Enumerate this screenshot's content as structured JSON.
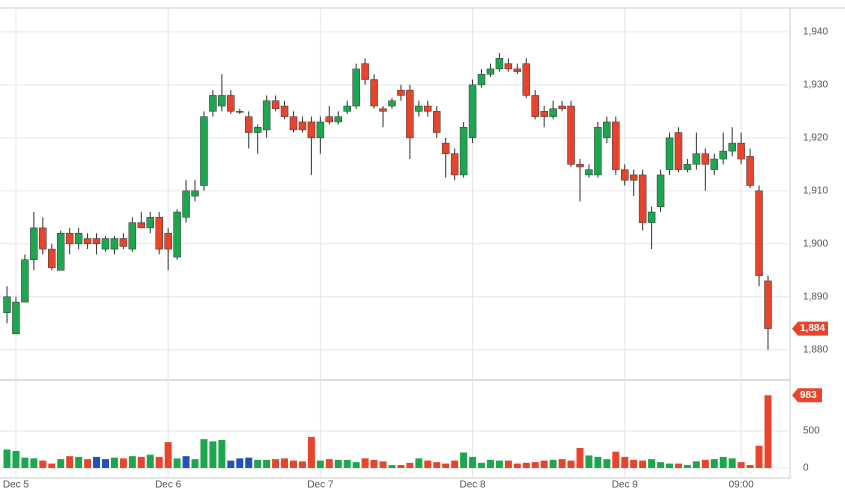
{
  "chart_data": {
    "type": "candlestick",
    "categories": [
      null,
      "Dec 5",
      null,
      null,
      null,
      null,
      null,
      null,
      null,
      null,
      null,
      null,
      null,
      null,
      null,
      null,
      null,
      null,
      "Dec 6",
      null,
      null,
      null,
      null,
      null,
      null,
      null,
      null,
      null,
      null,
      null,
      null,
      null,
      null,
      null,
      null,
      "Dec 7",
      null,
      null,
      null,
      null,
      null,
      null,
      null,
      null,
      null,
      null,
      null,
      null,
      null,
      null,
      null,
      null,
      "Dec 8",
      null,
      null,
      null,
      null,
      null,
      null,
      null,
      null,
      null,
      null,
      null,
      null,
      null,
      null,
      null,
      null,
      "Dec 9",
      null,
      null,
      null,
      null,
      null,
      null,
      null,
      null,
      null,
      null,
      null,
      null,
      "09:00",
      null,
      null,
      null
    ],
    "open": [
      1887,
      1883,
      1889,
      1897,
      1903,
      1899,
      1895,
      1902,
      1900,
      1901,
      1901,
      1899,
      1899,
      1901,
      1899,
      1904,
      1903,
      1905,
      1902,
      1897.5,
      1905,
      1909,
      1911,
      1925,
      1926,
      1928,
      1925,
      1924,
      1921,
      1921.5,
      1927,
      1926,
      1924,
      1923,
      1923,
      1920,
      1924,
      1923,
      1925,
      1926,
      1934,
      1931,
      1925.5,
      1926,
      1929,
      1929,
      1925,
      1926,
      1925,
      1919,
      1917,
      1913,
      1920,
      1930,
      1932,
      1933,
      1934,
      1933,
      1934,
      1928,
      1925,
      1924,
      1926,
      1926,
      1915,
      1913,
      1913,
      1920,
      1923,
      1914,
      1913,
      1913,
      1904,
      1907,
      1914,
      1921,
      1914,
      1915,
      1917,
      1914,
      1916,
      1917.5,
      1919,
      1916.5,
      1910,
      1893
    ],
    "high": [
      1892,
      1890,
      1898,
      1906,
      1905,
      1900,
      1902.5,
      1903,
      1903,
      1902,
      1902,
      1901.5,
      1901.5,
      1902,
      1905,
      1906,
      1906,
      1906,
      1903,
      1906.5,
      1912,
      1912,
      1925,
      1929,
      1932,
      1929,
      1925.5,
      1925,
      1922.5,
      1928,
      1928,
      1927,
      1925,
      1924,
      1924,
      1924,
      1926,
      1925,
      1927,
      1934,
      1935,
      1932,
      1926,
      1927.5,
      1930,
      1930,
      1927,
      1927,
      1926,
      1920,
      1918,
      1923,
      1931,
      1933,
      1934,
      1936,
      1935,
      1934,
      1935,
      1929,
      1926,
      1927,
      1927,
      1927,
      1916,
      1915,
      1923,
      1924,
      1924,
      1915,
      1914,
      1914,
      1907,
      1914,
      1921,
      1922,
      1916,
      1921,
      1918,
      1917,
      1921,
      1922,
      1921,
      1918,
      1911,
      1894
    ],
    "low": [
      1885,
      1883,
      1889,
      1895,
      1898,
      1895,
      1895,
      1898,
      1899,
      1899,
      1898,
      1898.5,
      1898,
      1899,
      1898.5,
      1903,
      1902,
      1898,
      1895,
      1897,
      1904,
      1908,
      1910,
      1924,
      1925,
      1924.5,
      1924.5,
      1918,
      1917,
      1920,
      1925,
      1923.5,
      1921,
      1921,
      1913,
      1917,
      1922.5,
      1922.5,
      1924.5,
      1925.5,
      1930,
      1925.5,
      1922,
      1925.5,
      1927,
      1916,
      1924,
      1924,
      1920,
      1912.5,
      1912,
      1912.5,
      1919,
      1929.5,
      1931.5,
      1932.5,
      1932.5,
      1932,
      1927.5,
      1923.5,
      1922,
      1923.5,
      1925,
      1914.5,
      1908,
      1912.5,
      1912.5,
      1919,
      1913,
      1911,
      1909,
      1902.5,
      1899,
      1906,
      1913,
      1913.5,
      1913.5,
      1914,
      1910,
      1913,
      1915,
      1916.5,
      1915,
      1910.5,
      1892,
      1880
    ],
    "close": [
      1890,
      1889,
      1897,
      1903,
      1899,
      1895.5,
      1902,
      1900,
      1902,
      1900,
      1900,
      1901,
      1901,
      1899.5,
      1904,
      1903,
      1905,
      1899,
      1899,
      1906,
      1910,
      1910,
      1924,
      1928,
      1928,
      1925,
      1925,
      1921,
      1922,
      1927,
      1925.5,
      1924,
      1921.5,
      1921.5,
      1920,
      1923,
      1923,
      1924,
      1926,
      1933,
      1931,
      1926,
      1925,
      1927,
      1928,
      1920,
      1926,
      1925,
      1921,
      1917,
      1913,
      1922,
      1930,
      1932,
      1933,
      1935,
      1933,
      1932.5,
      1928,
      1924,
      1924,
      1925.5,
      1925.5,
      1915,
      1914.5,
      1914,
      1922,
      1923,
      1914,
      1912,
      1912,
      1904,
      1906,
      1913,
      1920,
      1914,
      1915,
      1917,
      1915,
      1916,
      1917.5,
      1919,
      1916,
      1911,
      1894,
      1884
    ],
    "ylim": [
      1874.3,
      1944.5
    ],
    "yticks": [
      {
        "value": 1880,
        "label": "1,880"
      },
      {
        "value": 1890,
        "label": "1,890"
      },
      {
        "value": 1900,
        "label": "1,900"
      },
      {
        "value": 1910,
        "label": "1,910"
      },
      {
        "value": 1920,
        "label": "1,920"
      },
      {
        "value": 1930,
        "label": "1,930"
      },
      {
        "value": 1940,
        "label": "1,940"
      }
    ],
    "up_color": "#1ea64f",
    "down_color": "#e8442c",
    "last_price": 1884,
    "last_price_label": "1,884",
    "volume": {
      "values": [
        250,
        230,
        140,
        130,
        100,
        60,
        120,
        160,
        150,
        120,
        150,
        120,
        140,
        130,
        160,
        150,
        180,
        150,
        350,
        130,
        160,
        120,
        390,
        360,
        380,
        100,
        130,
        140,
        110,
        110,
        120,
        130,
        100,
        90,
        420,
        100,
        120,
        110,
        110,
        80,
        130,
        110,
        90,
        40,
        40,
        70,
        130,
        100,
        80,
        60,
        100,
        210,
        150,
        70,
        110,
        100,
        100,
        60,
        70,
        80,
        100,
        110,
        120,
        100,
        270,
        170,
        150,
        120,
        220,
        150,
        110,
        100,
        120,
        80,
        60,
        60,
        40,
        90,
        110,
        120,
        150,
        130,
        80,
        40,
        300,
        983
      ],
      "colors": [
        "#1ea64f",
        "#1ea64f",
        "#1ea64f",
        "#1ea64f",
        "#e8442c",
        "#e8442c",
        "#1ea64f",
        "#e8442c",
        "#1ea64f",
        "#e8442c",
        "#2451b7",
        "#2451b7",
        "#1ea64f",
        "#e8442c",
        "#1ea64f",
        "#e8442c",
        "#1ea64f",
        "#e8442c",
        "#e8442c",
        "#1ea64f",
        "#2451b7",
        "#1ea64f",
        "#1ea64f",
        "#1ea64f",
        "#1ea64f",
        "#2451b7",
        "#2451b7",
        "#2451b7",
        "#1ea64f",
        "#1ea64f",
        "#e8442c",
        "#e8442c",
        "#e8442c",
        "#e8442c",
        "#e8442c",
        "#1ea64f",
        "#e8442c",
        "#1ea64f",
        "#1ea64f",
        "#1ea64f",
        "#e8442c",
        "#e8442c",
        "#e8442c",
        "#1ea64f",
        "#e8442c",
        "#e8442c",
        "#1ea64f",
        "#e8442c",
        "#e8442c",
        "#e8442c",
        "#e8442c",
        "#1ea64f",
        "#1ea64f",
        "#1ea64f",
        "#1ea64f",
        "#1ea64f",
        "#e8442c",
        "#e8442c",
        "#e8442c",
        "#e8442c",
        "#e8442c",
        "#1ea64f",
        "#e8442c",
        "#e8442c",
        "#e8442c",
        "#1ea64f",
        "#1ea64f",
        "#1ea64f",
        "#e8442c",
        "#e8442c",
        "#e8442c",
        "#e8442c",
        "#1ea64f",
        "#1ea64f",
        "#1ea64f",
        "#e8442c",
        "#1ea64f",
        "#1ea64f",
        "#e8442c",
        "#1ea64f",
        "#1ea64f",
        "#1ea64f",
        "#e8442c",
        "#e8442c",
        "#e8442c",
        "#e8442c"
      ],
      "ylim": [
        -135,
        1189
      ],
      "yticks": [
        0,
        500
      ],
      "last_label": "983"
    }
  }
}
